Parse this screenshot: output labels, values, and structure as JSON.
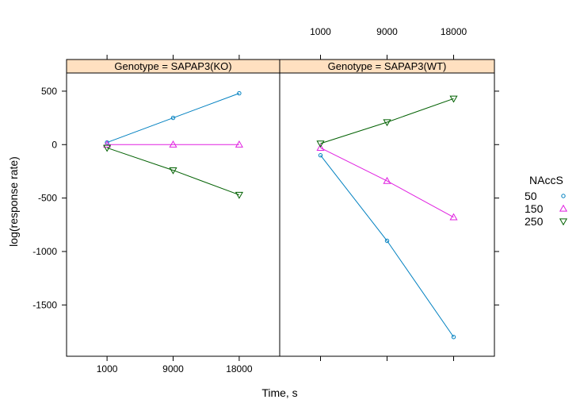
{
  "chart_data": {
    "type": "line",
    "xlabel": "Time, s",
    "ylabel": "log(response rate)",
    "x_categories": [
      "1000",
      "9000",
      "18000"
    ],
    "y_ticks": [
      500,
      0,
      -500,
      -1000,
      -1500
    ],
    "ylim": [
      -1980,
      670
    ],
    "legend": {
      "title": "NAccS",
      "placement": "right"
    },
    "series_styles": [
      {
        "name": "50",
        "color": "#0080c0",
        "marker": "circle"
      },
      {
        "name": "150",
        "color": "#e020e0",
        "marker": "triangle-up"
      },
      {
        "name": "250",
        "color": "#006000",
        "marker": "triangle-down"
      }
    ],
    "strip_color": "#ffe0c0",
    "panels": [
      {
        "strip_label": "Genotype = SAPAP3(KO)",
        "series": [
          {
            "name": "50",
            "values": [
              20,
              250,
              480
            ]
          },
          {
            "name": "150",
            "values": [
              0,
              0,
              0
            ]
          },
          {
            "name": "250",
            "values": [
              -30,
              -240,
              -470
            ]
          }
        ]
      },
      {
        "strip_label": "Genotype = SAPAP3(WT)",
        "series": [
          {
            "name": "50",
            "values": [
              -100,
              -900,
              -1800
            ]
          },
          {
            "name": "150",
            "values": [
              -30,
              -340,
              -680
            ]
          },
          {
            "name": "250",
            "values": [
              10,
              210,
              430
            ]
          }
        ]
      }
    ]
  }
}
